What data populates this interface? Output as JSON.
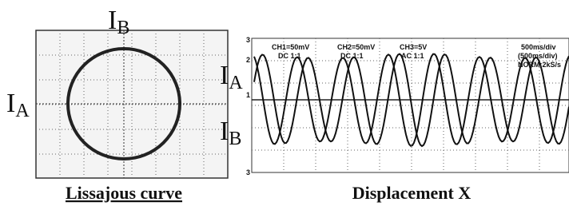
{
  "lissajous": {
    "axis_top": {
      "symbol": "I",
      "subscript": "B"
    },
    "axis_left": {
      "symbol": "I",
      "subscript": "A"
    },
    "caption": "Lissajous curve"
  },
  "displacement": {
    "trace_1": {
      "symbol": "I",
      "subscript": "A"
    },
    "trace_2": {
      "symbol": "I",
      "subscript": "B"
    },
    "caption": "Displacement  X",
    "scope_labels": {
      "ch1": "CH1=50mV",
      "ch1_coupling": "DC 1:1",
      "ch2": "CH2=50mV",
      "ch2_coupling": "DC 1:1",
      "ch3": "CH3=5V",
      "ch3_coupling": "AC 1:1",
      "timebase": "500ms/div",
      "timebase_2": "(500ms/div)",
      "sampling": "NORM:2kS/s"
    },
    "markers": [
      "3",
      "2",
      "1",
      "3"
    ]
  }
}
